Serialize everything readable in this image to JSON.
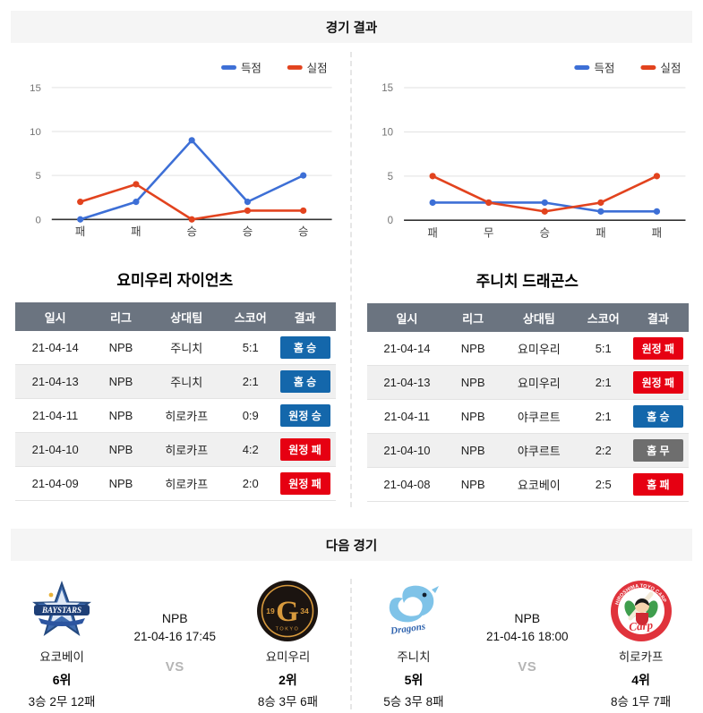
{
  "headers": {
    "results": "경기 결과",
    "next": "다음 경기"
  },
  "colors": {
    "score_line": "#3d6fd6",
    "concede_line": "#e2431e",
    "win_badge": "#1467ab",
    "lose_badge": "#e60012",
    "draw_badge": "#6e6e6e",
    "table_header_bg": "#6b7480"
  },
  "chart_data": [
    {
      "type": "line",
      "team": "요미우리 자이언츠",
      "categories": [
        "패",
        "패",
        "승",
        "승",
        "승"
      ],
      "series": [
        {
          "name": "득점",
          "color": "#3d6fd6",
          "values": [
            0,
            2,
            9,
            2,
            5
          ]
        },
        {
          "name": "실점",
          "color": "#e2431e",
          "values": [
            2,
            4,
            0,
            1,
            1
          ]
        }
      ],
      "yticks": [
        0,
        5,
        10,
        15
      ],
      "ylim": [
        0,
        15
      ],
      "legend_position": "top-right",
      "grid": true
    },
    {
      "type": "line",
      "team": "주니치 드래곤스",
      "categories": [
        "패",
        "무",
        "승",
        "패",
        "패"
      ],
      "series": [
        {
          "name": "득점",
          "color": "#3d6fd6",
          "values": [
            2,
            2,
            2,
            1,
            1
          ]
        },
        {
          "name": "실점",
          "color": "#e2431e",
          "values": [
            5,
            2,
            1,
            2,
            5
          ]
        }
      ],
      "yticks": [
        0,
        5,
        10,
        15
      ],
      "ylim": [
        0,
        15
      ],
      "legend_position": "top-right",
      "grid": true
    }
  ],
  "tables": [
    {
      "title": "요미우리 자이언츠",
      "headers": [
        "일시",
        "리그",
        "상대팀",
        "스코어",
        "결과"
      ],
      "rows": [
        {
          "date": "21-04-14",
          "league": "NPB",
          "opponent": "주니치",
          "score": "5:1",
          "result": "홈 승",
          "type": "win"
        },
        {
          "date": "21-04-13",
          "league": "NPB",
          "opponent": "주니치",
          "score": "2:1",
          "result": "홈 승",
          "type": "win"
        },
        {
          "date": "21-04-11",
          "league": "NPB",
          "opponent": "히로카프",
          "score": "0:9",
          "result": "원정 승",
          "type": "win"
        },
        {
          "date": "21-04-10",
          "league": "NPB",
          "opponent": "히로카프",
          "score": "4:2",
          "result": "원정 패",
          "type": "lose"
        },
        {
          "date": "21-04-09",
          "league": "NPB",
          "opponent": "히로카프",
          "score": "2:0",
          "result": "원정 패",
          "type": "lose"
        }
      ]
    },
    {
      "title": "주니치 드래곤스",
      "headers": [
        "일시",
        "리그",
        "상대팀",
        "스코어",
        "결과"
      ],
      "rows": [
        {
          "date": "21-04-14",
          "league": "NPB",
          "opponent": "요미우리",
          "score": "5:1",
          "result": "원정 패",
          "type": "lose"
        },
        {
          "date": "21-04-13",
          "league": "NPB",
          "opponent": "요미우리",
          "score": "2:1",
          "result": "원정 패",
          "type": "lose"
        },
        {
          "date": "21-04-11",
          "league": "NPB",
          "opponent": "야쿠르트",
          "score": "2:1",
          "result": "홈 승",
          "type": "win"
        },
        {
          "date": "21-04-10",
          "league": "NPB",
          "opponent": "야쿠르트",
          "score": "2:2",
          "result": "홈 무",
          "type": "draw"
        },
        {
          "date": "21-04-08",
          "league": "NPB",
          "opponent": "요코베이",
          "score": "2:5",
          "result": "홈 패",
          "type": "lose"
        }
      ]
    }
  ],
  "next_matches": [
    {
      "league": "NPB",
      "datetime": "21-04-16 17:45",
      "vs_label": "VS",
      "home": {
        "name": "요코베이",
        "rank": "6위",
        "record": "3승 2무 12패",
        "logo": "baystars"
      },
      "away": {
        "name": "요미우리",
        "rank": "2위",
        "record": "8승 3무 6패",
        "logo": "giants"
      }
    },
    {
      "league": "NPB",
      "datetime": "21-04-16 18:00",
      "vs_label": "VS",
      "home": {
        "name": "주니치",
        "rank": "5위",
        "record": "5승 3무 8패",
        "logo": "dragons"
      },
      "away": {
        "name": "히로카프",
        "rank": "4위",
        "record": "8승 1무 7패",
        "logo": "carp"
      }
    }
  ]
}
